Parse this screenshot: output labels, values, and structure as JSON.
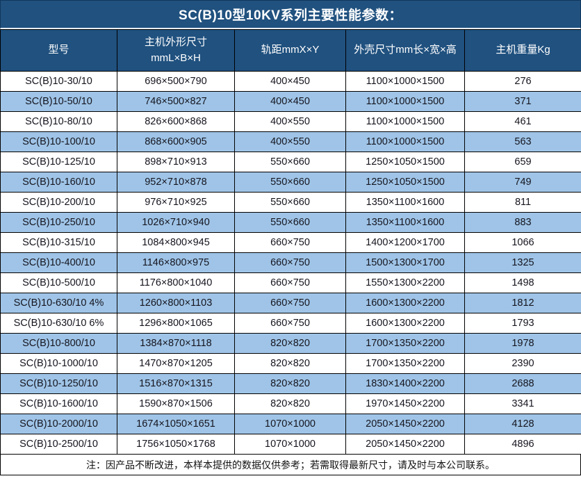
{
  "title": "SC(B)10型10KV系列主要性能参数：",
  "colors": {
    "header_bg": "#20517f",
    "header_text": "#ffffff",
    "row_bg": "#ffffff",
    "row_alt_bg": "#9fc4e7",
    "grid_border": "#000000",
    "cell_text": "#15151f"
  },
  "table": {
    "columns": [
      "型号",
      "主机外形尺寸\nmmL×B×H",
      "轨距mmX×Y",
      "外壳尺寸mm长×宽×高",
      "主机重量Kg"
    ],
    "column_keys": [
      "model",
      "unit-size",
      "rail-gauge",
      "shell-size",
      "weight"
    ],
    "rows": [
      [
        "SC(B)10-30/10",
        "696×500×790",
        "400×450",
        "1100×1000×1500",
        "276"
      ],
      [
        "SC(B)10-50/10",
        "746×500×827",
        "400×450",
        "1100×1000×1500",
        "371"
      ],
      [
        "SC(B)10-80/10",
        "826×600×868",
        "400×550",
        "1100×1000×1500",
        "461"
      ],
      [
        "SC(B)10-100/10",
        "868×600×905",
        "400×550",
        "1100×1000×1500",
        "563"
      ],
      [
        "SC(B)10-125/10",
        "898×710×913",
        "550×660",
        "1250×1050×1500",
        "659"
      ],
      [
        "SC(B)10-160/10",
        "952×710×878",
        "550×660",
        "1250×1050×1500",
        "749"
      ],
      [
        "SC(B)10-200/10",
        "976×710×925",
        "550×660",
        "1350×1100×1600",
        "811"
      ],
      [
        "SC(B)10-250/10",
        "1026×710×940",
        "550×660",
        "1350×1100×1600",
        "883"
      ],
      [
        "SC(B)10-315/10",
        "1084×800×945",
        "660×750",
        "1400×1200×1700",
        "1066"
      ],
      [
        "SC(B)10-400/10",
        "1146×800×975",
        "660×750",
        "1500×1300×1700",
        "1325"
      ],
      [
        "SC(B)10-500/10",
        "1176×800×1040",
        "660×750",
        "1550×1300×2200",
        "1498"
      ],
      [
        "SC(B)10-630/10 4%",
        "1260×800×1103",
        "660×750",
        "1600×1300×2200",
        "1812"
      ],
      [
        "SC(B)10-630/10 6%",
        "1296×800×1065",
        "660×750",
        "1600×1300×2200",
        "1793"
      ],
      [
        "SC(B)10-800/10",
        "1384×870×1118",
        "820×820",
        "1700×1350×2200",
        "1978"
      ],
      [
        "SC(B)10-1000/10",
        "1470×870×1205",
        "820×820",
        "1700×1350×2200",
        "2390"
      ],
      [
        "SC(B)10-1250/10",
        "1516×870×1315",
        "820×820",
        "1830×1400×2200",
        "2688"
      ],
      [
        "SC(B)10-1600/10",
        "1590×870×1506",
        "820×820",
        "1970×1450×2200",
        "3341"
      ],
      [
        "SC(B)10-2000/10",
        "1674×1050×1651",
        "1070×1000",
        "2050×1450×2200",
        "4128"
      ],
      [
        "SC(B)10-2500/10",
        "1756×1050×1768",
        "1070×1000",
        "2050×1450×2200",
        "4896"
      ]
    ]
  },
  "footnote": "注：因产品不断改进，本样本提供的数据仅供参考；若需取得最新尺寸，请及时与本公司联系。"
}
